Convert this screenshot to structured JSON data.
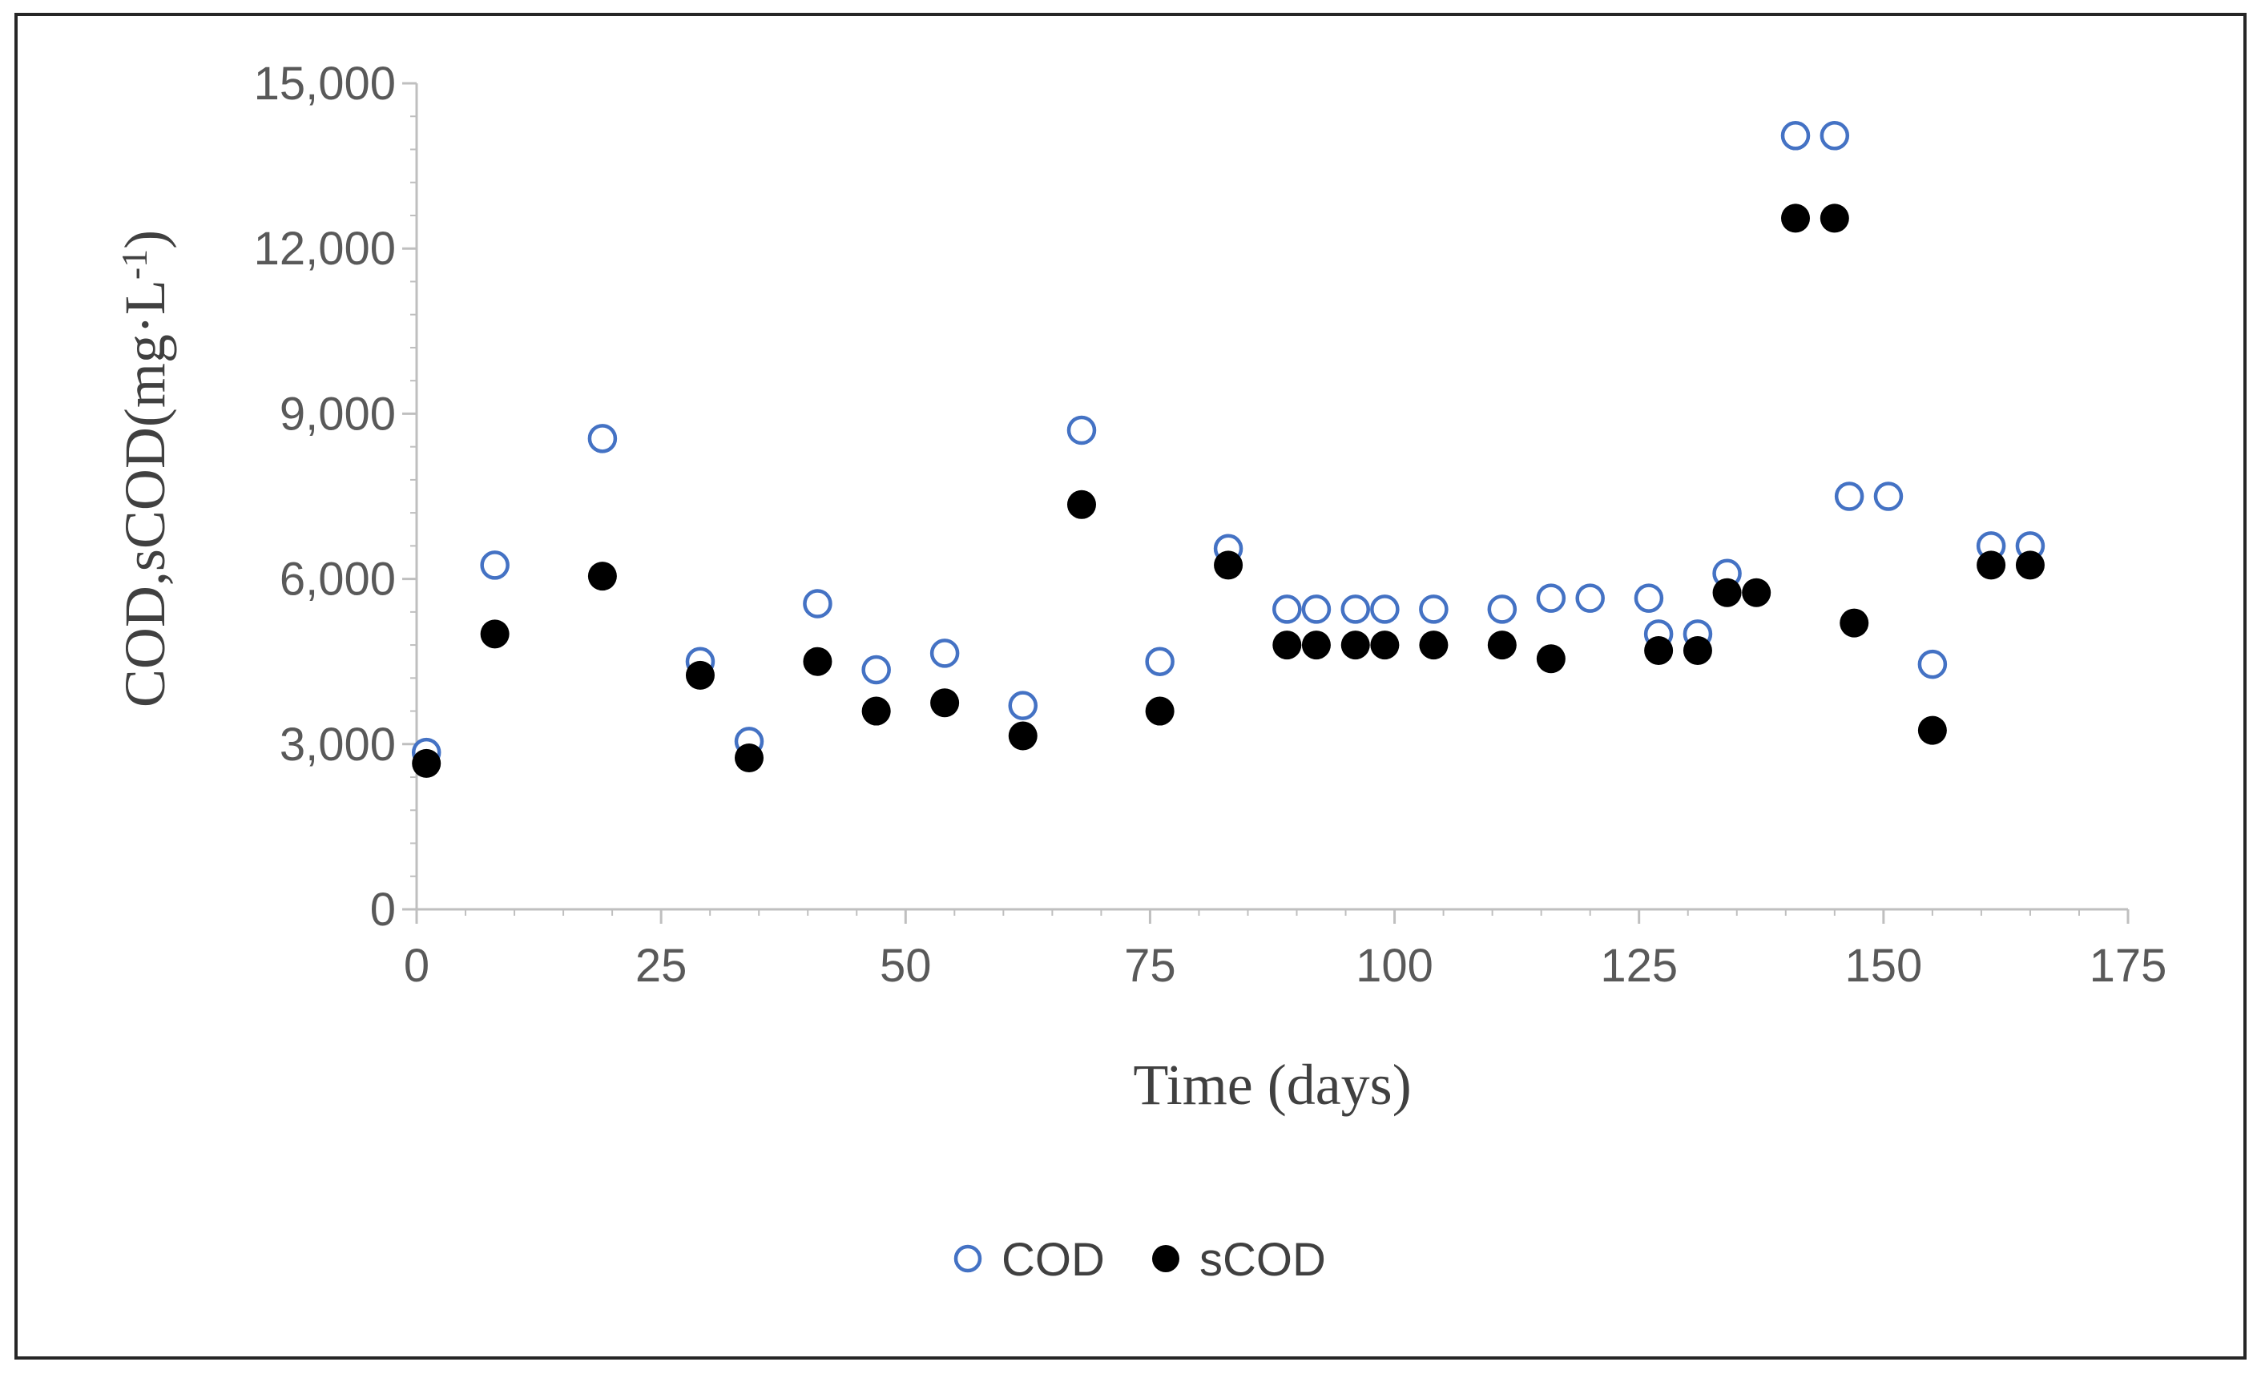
{
  "chart_data": {
    "type": "scatter",
    "xlabel": "Time (days)",
    "ylabel_main": "COD,sCOD(mg·L",
    "ylabel_sup": "-1",
    "ylabel_close": ")",
    "xlim": [
      0,
      175
    ],
    "ylim": [
      0,
      15000
    ],
    "x_ticks": [
      0,
      25,
      50,
      75,
      100,
      125,
      150,
      175
    ],
    "x_tick_labels": [
      "0",
      "25",
      "50",
      "75",
      "100",
      "125",
      "150",
      "175"
    ],
    "y_ticks": [
      0,
      3000,
      6000,
      9000,
      12000,
      15000
    ],
    "y_tick_labels": [
      "0",
      "3,000",
      "6,000",
      "9,000",
      "12,000",
      "15,000"
    ],
    "grid": false,
    "legend_position": "bottom-center",
    "series": [
      {
        "name": "COD",
        "marker": "open-circle",
        "color": "#4472C4",
        "points": [
          [
            1,
            2850
          ],
          [
            8,
            6250
          ],
          [
            19,
            8550
          ],
          [
            29,
            4500
          ],
          [
            34,
            3050
          ],
          [
            41,
            5550
          ],
          [
            47,
            4350
          ],
          [
            54,
            4650
          ],
          [
            62,
            3700
          ],
          [
            68,
            8700
          ],
          [
            76,
            4500
          ],
          [
            83,
            6550
          ],
          [
            89,
            5450
          ],
          [
            92,
            5450
          ],
          [
            96,
            5450
          ],
          [
            99,
            5450
          ],
          [
            104,
            5450
          ],
          [
            111,
            5450
          ],
          [
            116,
            5650
          ],
          [
            120,
            5650
          ],
          [
            126,
            5650
          ],
          [
            127,
            5000
          ],
          [
            131,
            5000
          ],
          [
            134,
            6100
          ],
          [
            141,
            14050
          ],
          [
            145,
            14050
          ],
          [
            146.5,
            7500
          ],
          [
            150.5,
            7500
          ],
          [
            155,
            4450
          ],
          [
            161,
            6600
          ],
          [
            165,
            6600
          ]
        ]
      },
      {
        "name": "sCOD",
        "marker": "filled-circle",
        "color": "#000000",
        "points": [
          [
            1,
            2650
          ],
          [
            8,
            5000
          ],
          [
            19,
            6050
          ],
          [
            29,
            4250
          ],
          [
            34,
            2750
          ],
          [
            41,
            4500
          ],
          [
            47,
            3600
          ],
          [
            54,
            3750
          ],
          [
            62,
            3150
          ],
          [
            68,
            7350
          ],
          [
            76,
            3600
          ],
          [
            83,
            6250
          ],
          [
            89,
            4800
          ],
          [
            92,
            4800
          ],
          [
            96,
            4800
          ],
          [
            99,
            4800
          ],
          [
            104,
            4800
          ],
          [
            111,
            4800
          ],
          [
            116,
            4550
          ],
          [
            127,
            4700
          ],
          [
            131,
            4700
          ],
          [
            134,
            5750
          ],
          [
            137,
            5750
          ],
          [
            141,
            12550
          ],
          [
            145,
            12550
          ],
          [
            147,
            5200
          ],
          [
            155,
            3250
          ],
          [
            161,
            6250
          ],
          [
            165,
            6250
          ]
        ]
      }
    ]
  }
}
